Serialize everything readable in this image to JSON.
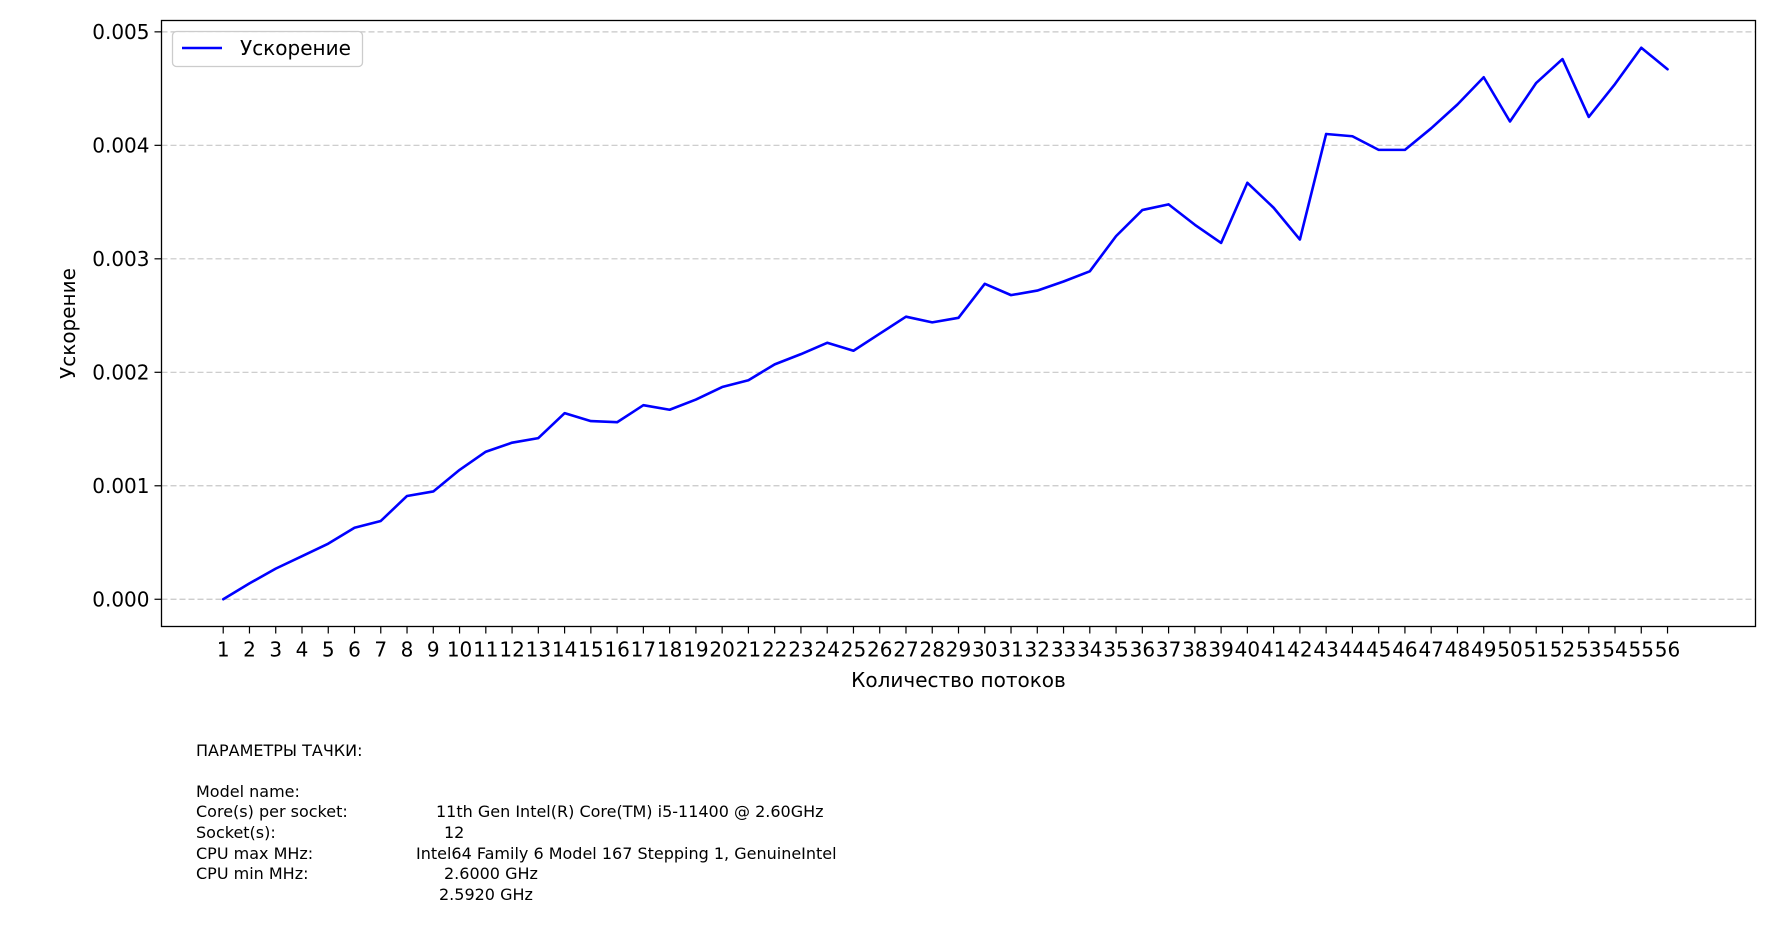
{
  "chart_data": {
    "type": "line",
    "xlabel": "Количество потоков",
    "ylabel": "Ускорение",
    "xlim": [
      -1.35,
      59.35
    ],
    "ylim": [
      -0.00024,
      0.0051
    ],
    "y_ticks": [
      "0.000",
      "0.001",
      "0.002",
      "0.003",
      "0.004",
      "0.005"
    ],
    "y_tick_values": [
      0,
      0.001,
      0.002,
      0.003,
      0.004,
      0.005
    ],
    "x_ticks": [
      "1",
      "2",
      "3",
      "4",
      "5",
      "6",
      "7",
      "8",
      "9",
      "10",
      "11",
      "12",
      "13",
      "14",
      "15",
      "16",
      "17",
      "18",
      "19",
      "20",
      "21",
      "22",
      "23",
      "24",
      "25",
      "26",
      "27",
      "28",
      "29",
      "30",
      "31",
      "32",
      "33",
      "34",
      "35",
      "36",
      "37",
      "38",
      "39",
      "40",
      "41",
      "42",
      "43",
      "44",
      "45",
      "46",
      "47",
      "48",
      "49",
      "50",
      "51",
      "52",
      "53",
      "54",
      "55",
      "56"
    ],
    "grid": "y-dashed",
    "legend_position": "top-left",
    "color": "#0000ff",
    "series": [
      {
        "name": "Ускорение",
        "values": [
          0.0,
          0.00014,
          0.00027,
          0.00038,
          0.00049,
          0.00063,
          0.00069,
          0.00091,
          0.00095,
          0.00114,
          0.0013,
          0.00138,
          0.00142,
          0.00164,
          0.00157,
          0.00156,
          0.00171,
          0.00167,
          0.00176,
          0.00187,
          0.00193,
          0.00207,
          0.00216,
          0.00226,
          0.00219,
          0.00234,
          0.00249,
          0.00244,
          0.00248,
          0.00278,
          0.00268,
          0.00272,
          0.0028,
          0.00289,
          0.0032,
          0.00343,
          0.00348,
          0.0033,
          0.00314,
          0.00367,
          0.00345,
          0.00317,
          0.0041,
          0.00408,
          0.00396,
          0.00396,
          0.00415,
          0.00436,
          0.0046,
          0.00421,
          0.00455,
          0.00476,
          0.00425,
          0.00454,
          0.00486,
          0.00467
        ]
      }
    ]
  },
  "params": {
    "heading": "ПАРАМЕТРЫ ТАЧКИ:",
    "rows": [
      {
        "key": "Model name:",
        "value": "11th Gen Intel(R) Core(TM) i5-11400 @ 2.60GHz"
      },
      {
        "key": "Core(s) per socket:",
        "value": "12"
      },
      {
        "key": "Socket(s):",
        "value": "Intel64 Family 6 Model 167 Stepping 1, GenuineIntel"
      },
      {
        "key": "CPU max MHz:",
        "value": "2.6000 GHz"
      },
      {
        "key": "CPU min MHz:",
        "value": "2.5920 GHz"
      }
    ]
  }
}
